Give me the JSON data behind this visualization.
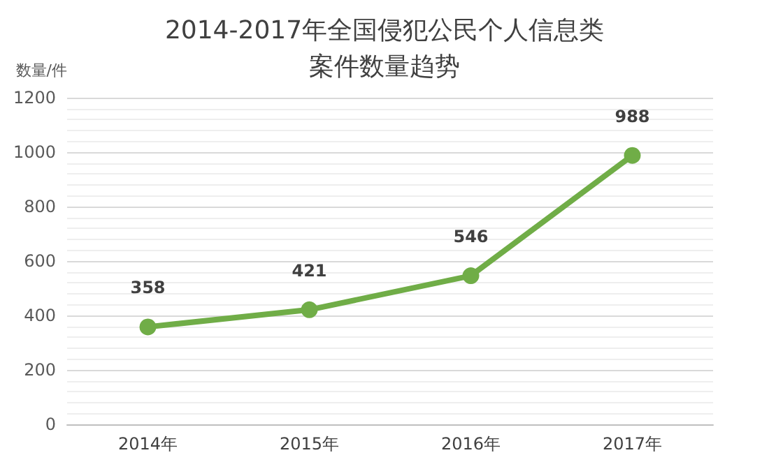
{
  "chart_data": {
    "type": "line",
    "title": "2014-2017年全国侵犯公民个人信息类案件数量趋势",
    "ylabel": "数量/件",
    "categories": [
      "2014年",
      "2015年",
      "2016年",
      "2017年"
    ],
    "series": [
      {
        "color": "#70ad47",
        "values": [
          358,
          421,
          546,
          988
        ]
      }
    ],
    "ylim": [
      0,
      1200
    ],
    "yticks": [
      0,
      200,
      400,
      600,
      800,
      1000,
      1200
    ],
    "grid": "y",
    "marker": "circle",
    "line_style": "solid",
    "data_labels": true
  }
}
